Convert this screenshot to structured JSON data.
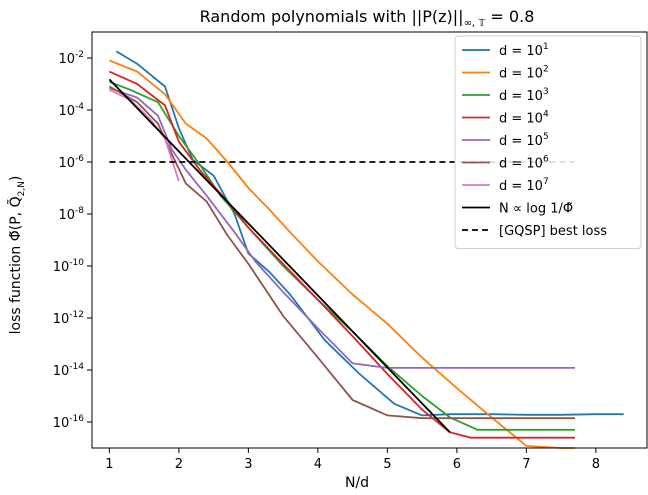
{
  "chart_data": {
    "type": "line",
    "title": "Random polynomials with ||P(z)||",
    "title_sub": "∞, 𝕋",
    "title_tail": " = 0.8",
    "xlabel": "N/d",
    "ylabel": "loss function Φ̃(P, Q̃",
    "ylabel_sub": "2,N",
    "ylabel_tail": ")",
    "ylog": true,
    "xlim": [
      0.75,
      8.75
    ],
    "ylim": [
      1e-17,
      0.1
    ],
    "xticks": [
      1,
      2,
      3,
      4,
      5,
      6,
      7,
      8
    ],
    "yticks": [
      {
        "value": 0.01,
        "base": "10",
        "exp": "-2"
      },
      {
        "value": 0.0001,
        "base": "10",
        "exp": "-4"
      },
      {
        "value": 1e-06,
        "base": "10",
        "exp": "-6"
      },
      {
        "value": 1e-08,
        "base": "10",
        "exp": "-8"
      },
      {
        "value": 1e-10,
        "base": "10",
        "exp": "-10"
      },
      {
        "value": 1e-12,
        "base": "10",
        "exp": "-12"
      },
      {
        "value": 1e-14,
        "base": "10",
        "exp": "-14"
      },
      {
        "value": 1e-16,
        "base": "10",
        "exp": "-16"
      }
    ],
    "legend_position": "top-right",
    "series": [
      {
        "name": "d = 10",
        "name_exp": "1",
        "color": "#1f77b4",
        "style": "solid",
        "x": [
          1.1,
          1.4,
          1.8,
          2.0,
          2.2,
          2.5,
          2.8,
          3.0,
          3.3,
          3.6,
          4.1,
          4.6,
          5.1,
          5.5,
          5.9,
          6.2,
          6.5,
          7.0,
          7.5,
          8.0,
          8.4
        ],
        "y": [
          0.018,
          0.006,
          0.0008,
          2e-05,
          1.2e-06,
          3e-07,
          1e-08,
          3e-10,
          6e-11,
          8e-12,
          1.4e-13,
          7e-15,
          5e-16,
          1.8e-16,
          2e-16,
          2e-16,
          2e-16,
          1.9e-16,
          1.9e-16,
          2e-16,
          2e-16
        ]
      },
      {
        "name": "d = 10",
        "name_exp": "2",
        "color": "#ff7f0e",
        "style": "solid",
        "x": [
          1.0,
          1.4,
          1.8,
          2.1,
          2.4,
          2.7,
          3.0,
          3.3,
          3.6,
          4.0,
          4.5,
          5.0,
          5.5,
          6.0,
          6.5,
          7.0,
          7.5,
          7.7
        ],
        "y": [
          0.008,
          0.003,
          0.0004,
          3e-05,
          8e-06,
          1e-06,
          1e-07,
          1.5e-08,
          2e-09,
          1.5e-10,
          8e-12,
          6e-13,
          3e-14,
          2e-15,
          1.5e-16,
          1.2e-17,
          3e-18,
          3e-18
        ]
      },
      {
        "name": "d = 10",
        "name_exp": "3",
        "color": "#2ca02c",
        "style": "solid",
        "x": [
          1.0,
          1.3,
          1.7,
          2.0,
          2.3,
          2.6,
          3.0,
          3.5,
          4.0,
          4.5,
          5.0,
          5.5,
          5.9,
          6.3,
          6.6,
          7.0,
          7.4,
          7.7
        ],
        "y": [
          0.0012,
          0.0006,
          0.0002,
          1e-05,
          8e-07,
          5e-08,
          3e-09,
          1e-10,
          5e-12,
          3e-13,
          1.4e-14,
          1e-15,
          1.5e-16,
          5e-17,
          5e-17,
          5e-17,
          5e-17,
          5e-17
        ]
      },
      {
        "name": "d = 10",
        "name_exp": "4",
        "color": "#d62728",
        "style": "solid",
        "x": [
          1.0,
          1.4,
          1.8,
          2.0,
          2.3,
          2.7,
          3.0,
          3.5,
          4.0,
          4.5,
          5.0,
          5.5,
          5.9,
          6.2,
          6.5,
          7.0,
          7.5,
          7.7
        ],
        "y": [
          0.003,
          0.001,
          0.00015,
          6e-06,
          5e-07,
          3e-08,
          3e-09,
          1.2e-10,
          5e-12,
          2e-13,
          7e-15,
          3e-16,
          4e-17,
          2.5e-17,
          2.5e-17,
          2.5e-17,
          2.5e-17,
          2.5e-17
        ]
      },
      {
        "name": "d = 10",
        "name_exp": "5",
        "color": "#9467bd",
        "style": "solid",
        "x": [
          1.0,
          1.4,
          1.7,
          1.9,
          2.1,
          2.4,
          2.8,
          3.1,
          3.5,
          4.0,
          4.5,
          5.0,
          5.5,
          6.0,
          6.5,
          7.0,
          7.7
        ],
        "y": [
          0.0007,
          0.0003,
          6e-05,
          3e-06,
          5e-07,
          5e-08,
          2e-09,
          1.5e-10,
          1e-11,
          4e-13,
          1.8e-14,
          1.2e-14,
          1.2e-14,
          1.2e-14,
          1.2e-14,
          1.2e-14,
          1.2e-14
        ]
      },
      {
        "name": "d = 10",
        "name_exp": "6",
        "color": "#8c564b",
        "style": "solid",
        "x": [
          1.0,
          1.4,
          1.7,
          1.9,
          2.1,
          2.4,
          2.7,
          3.0,
          3.5,
          4.0,
          4.5,
          5.0,
          5.5,
          6.0,
          6.5,
          7.0,
          7.7
        ],
        "y": [
          0.0008,
          0.0002,
          3e-05,
          2e-06,
          1.5e-07,
          3e-08,
          1.5e-09,
          1.2e-10,
          1.2e-12,
          3e-14,
          7e-16,
          1.8e-16,
          1.4e-16,
          1.4e-16,
          1.4e-16,
          1.4e-16,
          1.4e-16
        ]
      },
      {
        "name": "d = 10",
        "name_exp": "7",
        "color": "#e377c2",
        "style": "solid",
        "x": [
          1.0,
          1.3,
          1.6,
          1.8,
          2.0
        ],
        "y": [
          0.0006,
          0.00025,
          4e-05,
          8e-06,
          1.8e-07
        ]
      },
      {
        "name": "N ∝ log 1/Φ̃",
        "name_exp": "",
        "color": "#000000",
        "style": "solid",
        "x": [
          1.0,
          5.9
        ],
        "y": [
          0.0015,
          4e-17
        ]
      },
      {
        "name": "[GQSP] best loss",
        "name_exp": "",
        "color": "#000000",
        "style": "dashed",
        "x": [
          1.0,
          7.7
        ],
        "y": [
          1e-06,
          1e-06
        ]
      }
    ]
  }
}
